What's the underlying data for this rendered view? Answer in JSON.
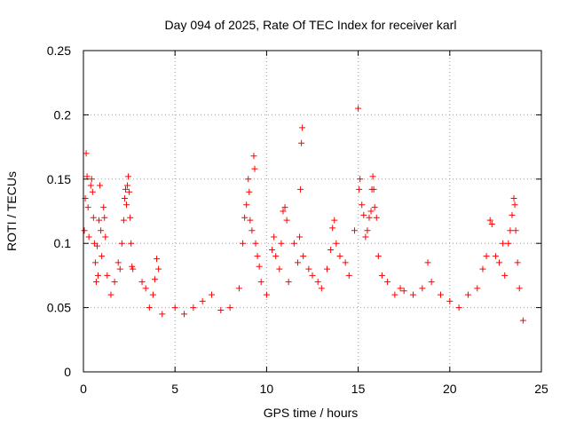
{
  "chart_data": {
    "type": "scatter",
    "title": "Day 094 of 2025, Rate Of TEC Index for receiver karl",
    "xlabel": "GPS time / hours",
    "ylabel": "ROTI / TECUs",
    "xlim": [
      0,
      25
    ],
    "ylim": [
      0,
      0.25
    ],
    "xticks": [
      0,
      5,
      10,
      15,
      20,
      25
    ],
    "xtick_labels": [
      "0",
      "5",
      "10",
      "15",
      "20",
      "25"
    ],
    "yticks": [
      0,
      0.05,
      0.1,
      0.15,
      0.2,
      0.25
    ],
    "ytick_labels": [
      "0",
      "0.05",
      "0.1",
      "0.15",
      "0.2",
      "0.25"
    ],
    "grid": true,
    "marker": "+",
    "color": "#ff0000",
    "series": [
      {
        "name": "ROTI",
        "points": [
          [
            0.05,
            0.11
          ],
          [
            0.1,
            0.135
          ],
          [
            0.15,
            0.17
          ],
          [
            0.2,
            0.152
          ],
          [
            0.25,
            0.128
          ],
          [
            0.3,
            0.105
          ],
          [
            0.4,
            0.145
          ],
          [
            0.45,
            0.15
          ],
          [
            0.5,
            0.14
          ],
          [
            0.55,
            0.12
          ],
          [
            0.6,
            0.1
          ],
          [
            0.65,
            0.085
          ],
          [
            0.7,
            0.07
          ],
          [
            0.75,
            0.098
          ],
          [
            0.8,
            0.075
          ],
          [
            0.85,
            0.118
          ],
          [
            0.9,
            0.145
          ],
          [
            0.95,
            0.11
          ],
          [
            1.0,
            0.09
          ],
          [
            1.1,
            0.128
          ],
          [
            1.15,
            0.12
          ],
          [
            1.2,
            0.105
          ],
          [
            1.3,
            0.075
          ],
          [
            1.5,
            0.06
          ],
          [
            1.7,
            0.07
          ],
          [
            1.9,
            0.085
          ],
          [
            2.0,
            0.08
          ],
          [
            2.1,
            0.1
          ],
          [
            2.2,
            0.118
          ],
          [
            2.25,
            0.135
          ],
          [
            2.3,
            0.142
          ],
          [
            2.35,
            0.13
          ],
          [
            2.4,
            0.145
          ],
          [
            2.45,
            0.152
          ],
          [
            2.5,
            0.14
          ],
          [
            2.55,
            0.12
          ],
          [
            2.6,
            0.1
          ],
          [
            2.65,
            0.082
          ],
          [
            2.7,
            0.08
          ],
          [
            3.2,
            0.07
          ],
          [
            3.4,
            0.065
          ],
          [
            3.6,
            0.05
          ],
          [
            3.8,
            0.06
          ],
          [
            3.9,
            0.072
          ],
          [
            4.0,
            0.088
          ],
          [
            4.1,
            0.08
          ],
          [
            4.3,
            0.045
          ],
          [
            5.0,
            0.05
          ],
          [
            5.5,
            0.045
          ],
          [
            6.0,
            0.05
          ],
          [
            6.5,
            0.055
          ],
          [
            7.0,
            0.06
          ],
          [
            7.5,
            0.048
          ],
          [
            8.0,
            0.05
          ],
          [
            8.5,
            0.065
          ],
          [
            8.7,
            0.1
          ],
          [
            8.8,
            0.12
          ],
          [
            8.9,
            0.13
          ],
          [
            9.0,
            0.15
          ],
          [
            9.05,
            0.14
          ],
          [
            9.1,
            0.118
          ],
          [
            9.2,
            0.11
          ],
          [
            9.3,
            0.168
          ],
          [
            9.35,
            0.158
          ],
          [
            9.4,
            0.1
          ],
          [
            9.5,
            0.09
          ],
          [
            9.6,
            0.082
          ],
          [
            9.7,
            0.07
          ],
          [
            10.0,
            0.06
          ],
          [
            10.3,
            0.095
          ],
          [
            10.4,
            0.105
          ],
          [
            10.5,
            0.09
          ],
          [
            10.7,
            0.08
          ],
          [
            10.8,
            0.1
          ],
          [
            10.9,
            0.125
          ],
          [
            11.0,
            0.128
          ],
          [
            11.1,
            0.118
          ],
          [
            11.2,
            0.07
          ],
          [
            11.5,
            0.1
          ],
          [
            11.7,
            0.085
          ],
          [
            11.8,
            0.105
          ],
          [
            11.85,
            0.142
          ],
          [
            11.9,
            0.178
          ],
          [
            11.95,
            0.19
          ],
          [
            12.0,
            0.09
          ],
          [
            12.3,
            0.08
          ],
          [
            12.5,
            0.075
          ],
          [
            12.8,
            0.07
          ],
          [
            13.0,
            0.065
          ],
          [
            13.3,
            0.08
          ],
          [
            13.5,
            0.095
          ],
          [
            13.6,
            0.112
          ],
          [
            13.7,
            0.118
          ],
          [
            13.8,
            0.1
          ],
          [
            14.0,
            0.09
          ],
          [
            14.3,
            0.085
          ],
          [
            14.5,
            0.075
          ],
          [
            14.8,
            0.11
          ],
          [
            15.0,
            0.205
          ],
          [
            15.05,
            0.142
          ],
          [
            15.1,
            0.15
          ],
          [
            15.2,
            0.13
          ],
          [
            15.3,
            0.122
          ],
          [
            15.4,
            0.105
          ],
          [
            15.5,
            0.11
          ],
          [
            15.6,
            0.12
          ],
          [
            15.7,
            0.125
          ],
          [
            15.75,
            0.142
          ],
          [
            15.8,
            0.152
          ],
          [
            15.85,
            0.142
          ],
          [
            15.9,
            0.128
          ],
          [
            16.0,
            0.12
          ],
          [
            16.1,
            0.09
          ],
          [
            16.3,
            0.075
          ],
          [
            16.6,
            0.07
          ],
          [
            17.0,
            0.06
          ],
          [
            17.3,
            0.065
          ],
          [
            17.5,
            0.063
          ],
          [
            18.0,
            0.06
          ],
          [
            18.5,
            0.065
          ],
          [
            18.8,
            0.085
          ],
          [
            19.0,
            0.07
          ],
          [
            19.5,
            0.06
          ],
          [
            20.0,
            0.055
          ],
          [
            20.5,
            0.05
          ],
          [
            21.0,
            0.06
          ],
          [
            21.5,
            0.065
          ],
          [
            21.8,
            0.08
          ],
          [
            22.0,
            0.09
          ],
          [
            22.2,
            0.118
          ],
          [
            22.3,
            0.115
          ],
          [
            22.5,
            0.09
          ],
          [
            22.7,
            0.085
          ],
          [
            22.9,
            0.1
          ],
          [
            23.0,
            0.075
          ],
          [
            23.2,
            0.1
          ],
          [
            23.3,
            0.11
          ],
          [
            23.4,
            0.122
          ],
          [
            23.5,
            0.135
          ],
          [
            23.55,
            0.13
          ],
          [
            23.6,
            0.11
          ],
          [
            23.7,
            0.085
          ],
          [
            23.8,
            0.065
          ],
          [
            24.0,
            0.04
          ]
        ]
      }
    ]
  }
}
